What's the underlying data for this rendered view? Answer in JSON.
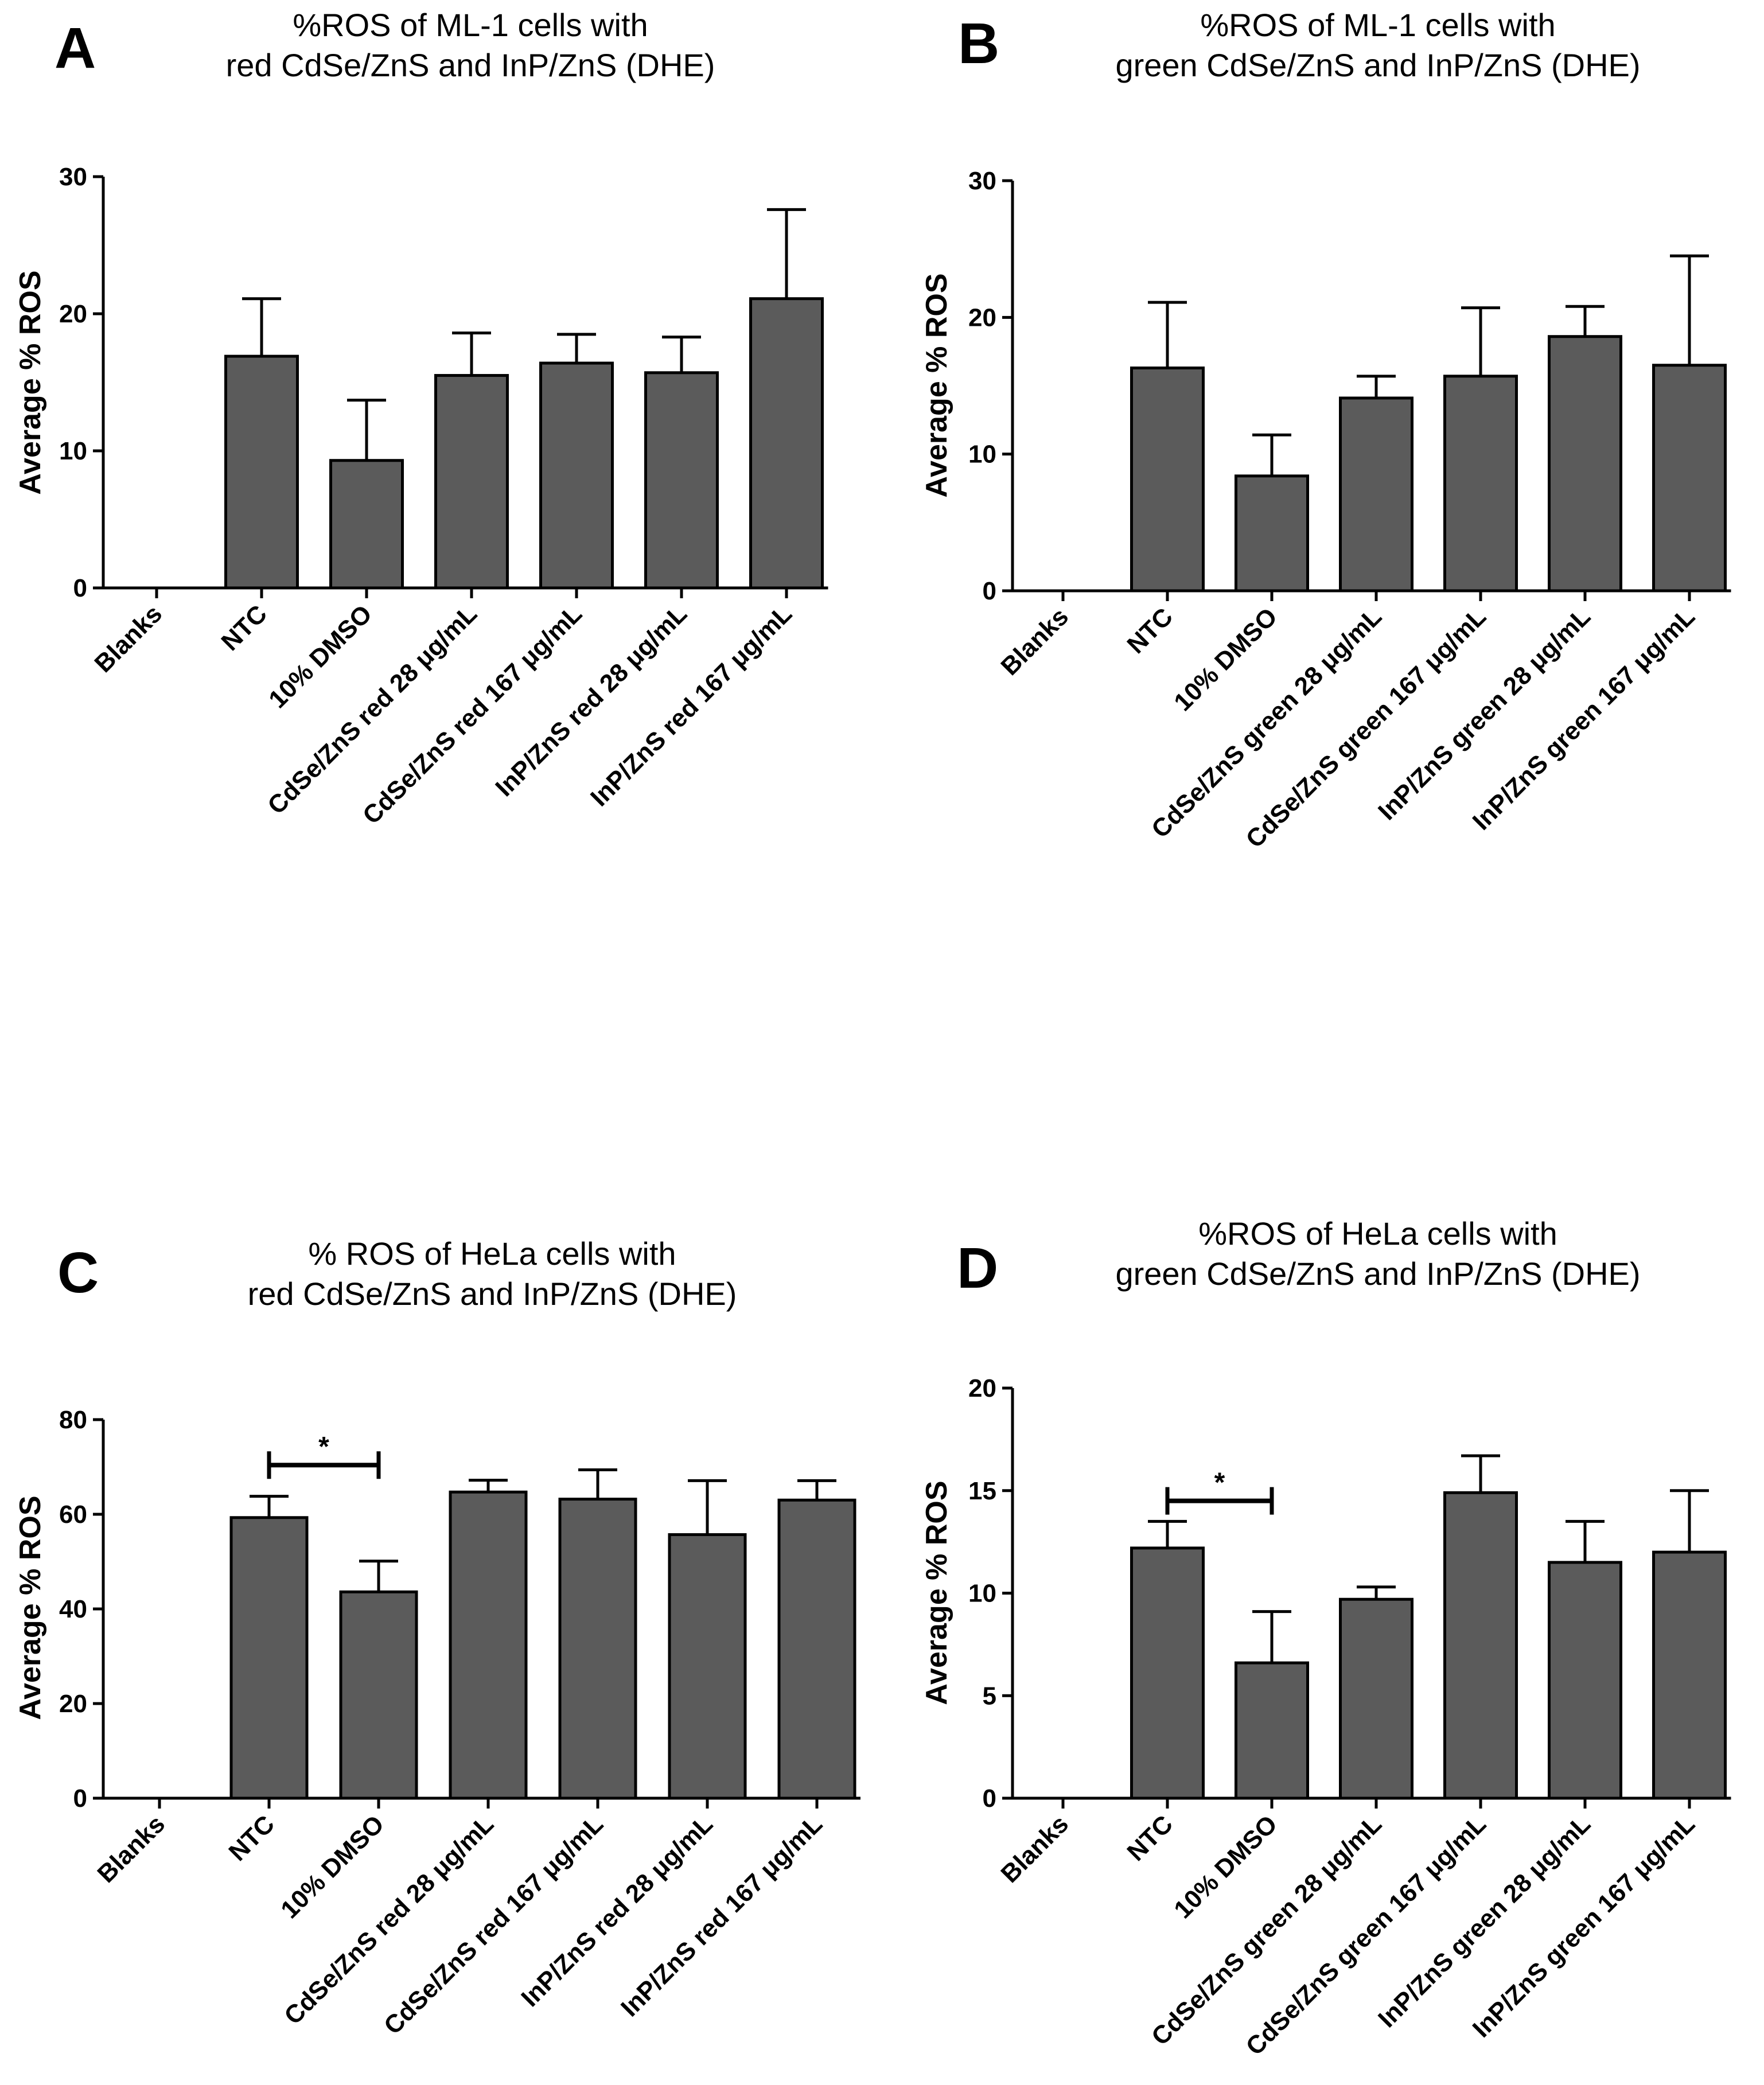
{
  "colors": {
    "bar": "#5b5b5b",
    "stroke": "#000000",
    "background": "#ffffff"
  },
  "chart_data": [
    {
      "panel": "A",
      "type": "bar",
      "title_lines": [
        "%ROS of ML-1 cells with",
        "red CdSe/ZnS and InP/ZnS (DHE)"
      ],
      "ylabel": "Average % ROS",
      "ylim": [
        0,
        30
      ],
      "yticks": [
        0,
        10,
        20,
        30
      ],
      "categories": [
        "Blanks",
        "NTC",
        "10% DMSO",
        "CdSe/ZnS red 28 μg/mL",
        "CdSe/ZnS red 167 μg/mL",
        "InP/ZnS red 28 μg/mL",
        "InP/ZnS red 167 μg/mL"
      ],
      "values": [
        0,
        16.9,
        9.3,
        15.5,
        16.4,
        15.7,
        21.1
      ],
      "errors": [
        0,
        4.2,
        4.4,
        3.1,
        2.1,
        2.6,
        6.5
      ],
      "significance": null
    },
    {
      "panel": "B",
      "type": "bar",
      "title_lines": [
        "%ROS of ML-1 cells with",
        "green CdSe/ZnS and InP/ZnS (DHE)"
      ],
      "ylabel": "Average % ROS",
      "ylim": [
        0,
        30
      ],
      "yticks": [
        0,
        10,
        20,
        30
      ],
      "categories": [
        "Blanks",
        "NTC",
        "10% DMSO",
        "CdSe/ZnS green 28 μg/mL",
        "CdSe/ZnS green 167 μg/mL",
        "InP/ZnS green 28 μg/mL",
        "InP/ZnS green 167 μg/mL"
      ],
      "values": [
        0,
        16.3,
        8.4,
        14.1,
        15.7,
        18.6,
        16.5
      ],
      "errors": [
        0,
        4.8,
        3.0,
        1.6,
        5.0,
        2.2,
        8.0
      ],
      "significance": null
    },
    {
      "panel": "C",
      "type": "bar",
      "title_lines": [
        "% ROS of HeLa cells with",
        "red CdSe/ZnS and InP/ZnS (DHE)"
      ],
      "ylabel": "Average % ROS",
      "ylim": [
        0,
        80
      ],
      "yticks": [
        0,
        20,
        40,
        60,
        80
      ],
      "categories": [
        "Blanks",
        "NTC",
        "10% DMSO",
        "CdSe/ZnS red 28 μg/mL",
        "CdSe/ZnS red 167 μg/mL",
        "InP/ZnS red 28 μg/mL",
        "InP/ZnS red 167 μg/mL"
      ],
      "values": [
        0,
        59.3,
        43.6,
        64.7,
        63.2,
        55.7,
        63.0
      ],
      "errors": [
        0,
        4.5,
        6.5,
        2.5,
        6.2,
        11.4,
        4.1
      ],
      "significance": {
        "from": 1,
        "to": 2,
        "level": 70.4,
        "label": "*"
      }
    },
    {
      "panel": "D",
      "type": "bar",
      "title_lines": [
        "%ROS of HeLa cells with",
        "green CdSe/ZnS and InP/ZnS (DHE)"
      ],
      "ylabel": "Average % ROS",
      "ylim": [
        0,
        20
      ],
      "yticks": [
        0,
        5,
        10,
        15,
        20
      ],
      "categories": [
        "Blanks",
        "NTC",
        "10% DMSO",
        "CdSe/ZnS green 28 μg/mL",
        "CdSe/ZnS green 167 μg/mL",
        "InP/ZnS green 28 μg/mL",
        "InP/ZnS green 167 μg/mL"
      ],
      "values": [
        0,
        12.2,
        6.6,
        9.7,
        14.9,
        11.5,
        12.0
      ],
      "errors": [
        0,
        1.3,
        2.5,
        0.6,
        1.8,
        2.0,
        3.0
      ],
      "significance": {
        "from": 1,
        "to": 2,
        "level": 14.5,
        "label": "*"
      }
    }
  ]
}
